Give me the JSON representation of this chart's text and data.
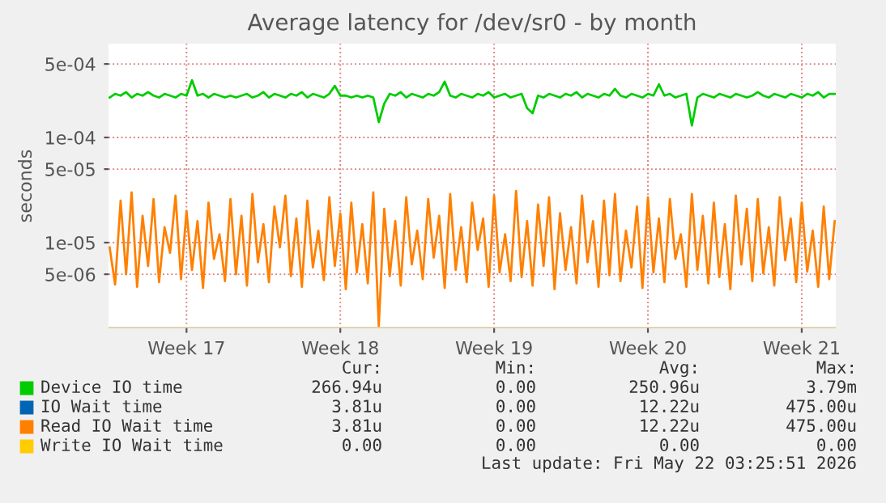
{
  "chart_data": {
    "type": "line",
    "title": "Average latency for /dev/sr0 - by month",
    "ylabel": "seconds",
    "categories": [
      null,
      null,
      null,
      null,
      null,
      null,
      null,
      null,
      null,
      null,
      null,
      null,
      null,
      null,
      "Week 17",
      null,
      null,
      null,
      null,
      null,
      null,
      null,
      null,
      null,
      null,
      null,
      null,
      null,
      null,
      null,
      null,
      null,
      null,
      null,
      null,
      null,
      null,
      null,
      null,
      null,
      null,
      null,
      "Week 18",
      null,
      null,
      null,
      null,
      null,
      null,
      null,
      null,
      null,
      null,
      null,
      null,
      null,
      null,
      null,
      null,
      null,
      null,
      null,
      null,
      null,
      null,
      null,
      null,
      null,
      null,
      null,
      "Week 19",
      null,
      null,
      null,
      null,
      null,
      null,
      null,
      null,
      null,
      null,
      null,
      null,
      null,
      null,
      null,
      null,
      null,
      null,
      null,
      null,
      null,
      null,
      null,
      null,
      null,
      null,
      null,
      "Week 20",
      null,
      null,
      null,
      null,
      null,
      null,
      null,
      null,
      null,
      null,
      null,
      null,
      null,
      null,
      null,
      null,
      null,
      null,
      null,
      null,
      null,
      null,
      null,
      null,
      null,
      null,
      null,
      "Week 21",
      null,
      null,
      null,
      null,
      null,
      null
    ],
    "series": [
      {
        "name": "Device IO time",
        "color": "#00cc00",
        "values": [
          0.00024,
          0.00026,
          0.00025,
          0.00027,
          0.00024,
          0.00026,
          0.00025,
          0.00027,
          0.00025,
          0.00024,
          0.00026,
          0.00025,
          0.00024,
          0.00026,
          0.00025,
          0.00035,
          0.00025,
          0.00026,
          0.00024,
          0.00026,
          0.00025,
          0.00024,
          0.00025,
          0.00024,
          0.00025,
          0.00026,
          0.00024,
          0.00025,
          0.00027,
          0.00024,
          0.00026,
          0.00025,
          0.00024,
          0.00026,
          0.00025,
          0.00027,
          0.00024,
          0.00026,
          0.00025,
          0.00024,
          0.00026,
          0.00031,
          0.00025,
          0.00025,
          0.00024,
          0.00025,
          0.00024,
          0.00025,
          0.00024,
          0.00014,
          0.00021,
          0.00026,
          0.00025,
          0.00027,
          0.00024,
          0.00026,
          0.00025,
          0.00024,
          0.00026,
          0.00025,
          0.00027,
          0.00034,
          0.00025,
          0.00024,
          0.00026,
          0.00025,
          0.00024,
          0.00026,
          0.00025,
          0.00027,
          0.00024,
          0.00025,
          0.00026,
          0.00024,
          0.00025,
          0.00026,
          0.00019,
          0.00017,
          0.00025,
          0.00024,
          0.00026,
          0.00025,
          0.00024,
          0.00026,
          0.00025,
          0.00027,
          0.00024,
          0.00026,
          0.00025,
          0.00024,
          0.00026,
          0.00025,
          0.00029,
          0.00025,
          0.00024,
          0.00026,
          0.00025,
          0.00024,
          0.00026,
          0.00025,
          0.00032,
          0.00025,
          0.00026,
          0.00024,
          0.00025,
          0.00026,
          0.00013,
          0.00024,
          0.00026,
          0.00025,
          0.00024,
          0.00026,
          0.00025,
          0.00024,
          0.00026,
          0.00025,
          0.00024,
          0.00025,
          0.00027,
          0.00025,
          0.00024,
          0.00026,
          0.00025,
          0.00024,
          0.00026,
          0.00025,
          0.00024,
          0.00026,
          0.00025,
          0.00027,
          0.00024,
          0.00026,
          0.00026
        ]
      },
      {
        "name": "IO Wait time",
        "color": "#0066b3",
        "values": [
          null,
          null,
          null,
          null,
          null,
          null,
          null,
          null,
          null,
          null,
          null,
          null,
          null,
          null,
          null,
          null,
          null,
          null,
          null,
          null,
          null,
          null,
          null,
          null,
          null,
          null,
          null,
          null,
          null,
          null,
          null,
          null,
          null,
          null,
          null,
          null,
          null,
          null,
          null,
          null,
          null,
          null,
          null,
          null,
          null,
          null,
          null,
          null,
          null,
          null,
          null,
          null,
          null,
          null,
          null,
          null,
          null,
          null,
          null,
          null,
          null,
          null,
          null,
          null,
          null,
          null,
          null,
          null,
          null,
          null,
          null,
          null,
          null,
          null,
          null,
          null,
          null,
          null,
          null,
          null,
          null,
          null,
          null,
          null,
          null,
          null,
          null,
          null,
          null,
          null,
          null,
          null,
          null,
          null,
          null,
          null,
          null,
          null,
          null,
          null,
          null,
          null,
          null,
          null,
          null,
          null,
          null,
          null,
          null,
          null,
          null,
          null,
          null,
          null,
          null,
          null,
          null,
          null,
          null,
          null,
          null,
          null,
          null,
          null,
          null,
          null,
          null,
          null,
          null,
          null,
          null,
          null,
          null
        ]
      },
      {
        "name": "Read IO Wait time",
        "color": "#ff8000",
        "values": [
          9e-06,
          4e-06,
          2.5e-05,
          5e-06,
          3e-05,
          3.8e-06,
          1.8e-05,
          6e-06,
          2.6e-05,
          4.2e-06,
          1.4e-05,
          8e-06,
          2.8e-05,
          4.5e-06,
          2e-05,
          5.5e-06,
          1.6e-05,
          3.7e-06,
          2.4e-05,
          7e-06,
          1.2e-05,
          4.3e-06,
          2.6e-05,
          5e-06,
          1.8e-05,
          3.9e-06,
          2.9e-05,
          6.5e-06,
          1.5e-05,
          4.2e-06,
          2.2e-05,
          9e-06,
          2.8e-05,
          4.8e-06,
          1.7e-05,
          3.8e-06,
          2.5e-05,
          5.8e-06,
          1.3e-05,
          4.4e-06,
          2.7e-05,
          6e-06,
          1.9e-05,
          3.6e-06,
          2.4e-05,
          5.2e-06,
          1.5e-05,
          4.1e-06,
          3e-05,
          1.6e-06,
          2.1e-05,
          4.8e-06,
          1.6e-05,
          3.9e-06,
          2.7e-05,
          6.2e-06,
          1.3e-05,
          4.5e-06,
          2.6e-05,
          7.2e-06,
          1.8e-05,
          3.7e-06,
          2.9e-05,
          5.5e-06,
          1.4e-05,
          4.2e-06,
          2.4e-05,
          8.5e-06,
          1.7e-05,
          3.8e-06,
          2.8e-05,
          5.2e-06,
          1.2e-05,
          4.3e-06,
          3.1e-05,
          4.7e-06,
          1.6e-05,
          3.9e-06,
          2.3e-05,
          6e-06,
          2.7e-05,
          3.6e-06,
          1.9e-05,
          5.5e-06,
          1.4e-05,
          4.1e-06,
          2.8e-05,
          6.5e-06,
          1.6e-05,
          3.8e-06,
          2.5e-05,
          4.9e-06,
          2.9e-05,
          4.3e-06,
          1.3e-05,
          5.8e-06,
          2.2e-05,
          3.7e-06,
          2.7e-05,
          5.2e-06,
          1.7e-05,
          4.2e-06,
          2.6e-05,
          7e-06,
          1.2e-05,
          3.8e-06,
          2.9e-05,
          5.5e-06,
          1.8e-05,
          4.1e-06,
          2.4e-05,
          4.7e-06,
          1.5e-05,
          3.6e-06,
          2.8e-05,
          6.2e-06,
          2.1e-05,
          4.3e-06,
          2.6e-05,
          5.1e-06,
          1.4e-05,
          3.9e-06,
          2.7e-05,
          6.8e-06,
          1.7e-05,
          4.2e-06,
          2.4e-05,
          5.3e-06,
          1.3e-05,
          3.8e-06,
          2.2e-05,
          4.5e-06,
          1.6e-05
        ]
      },
      {
        "name": "Write IO Wait time",
        "color": "#ffcc00",
        "values": [
          null,
          null,
          null,
          null,
          null,
          null,
          null,
          null,
          null,
          null,
          null,
          null,
          null,
          null,
          null,
          null,
          null,
          null,
          null,
          null,
          null,
          null,
          null,
          null,
          null,
          null,
          null,
          null,
          null,
          null,
          null,
          null,
          null,
          null,
          null,
          null,
          null,
          null,
          null,
          null,
          null,
          null,
          null,
          null,
          null,
          null,
          null,
          null,
          null,
          null,
          null,
          null,
          null,
          null,
          null,
          null,
          null,
          null,
          null,
          null,
          null,
          null,
          null,
          null,
          null,
          null,
          null,
          null,
          null,
          null,
          null,
          null,
          null,
          null,
          null,
          null,
          null,
          null,
          null,
          null,
          null,
          null,
          null,
          null,
          null,
          null,
          null,
          null,
          null,
          null,
          null,
          null,
          null,
          null,
          null,
          null,
          null,
          null,
          null,
          null,
          null,
          null,
          null,
          null,
          null,
          null,
          null,
          null,
          null,
          null,
          null,
          null,
          null,
          null,
          null,
          null,
          null,
          null,
          null,
          null,
          null,
          null,
          null,
          null,
          null,
          null,
          null,
          null,
          null,
          null,
          null,
          null,
          null
        ]
      }
    ],
    "log": "y",
    "ylim": [
      1.53e-06,
      0.00078
    ],
    "yticks": [
      {
        "value": 5e-06,
        "label": "5e-06"
      },
      {
        "value": 1e-05,
        "label": "1e-05"
      },
      {
        "value": 5e-05,
        "label": "5e-05"
      },
      {
        "value": 0.0001,
        "label": "1e-04"
      },
      {
        "value": 0.0005,
        "label": "5e-04"
      }
    ],
    "grid": true,
    "legend": "bottom",
    "annotations": [
      "Cur:",
      "Min:",
      "Avg:",
      "Max:",
      "266.94u",
      "0.00",
      "250.96u",
      "3.79m",
      "3.81u",
      "0.00",
      "12.22u",
      "475.00u",
      "3.81u",
      "0.00",
      "12.22u",
      "475.00u",
      "0.00",
      "0.00",
      "0.00",
      "0.00",
      "Last update: Fri May 22 03:25:51 2026"
    ]
  }
}
